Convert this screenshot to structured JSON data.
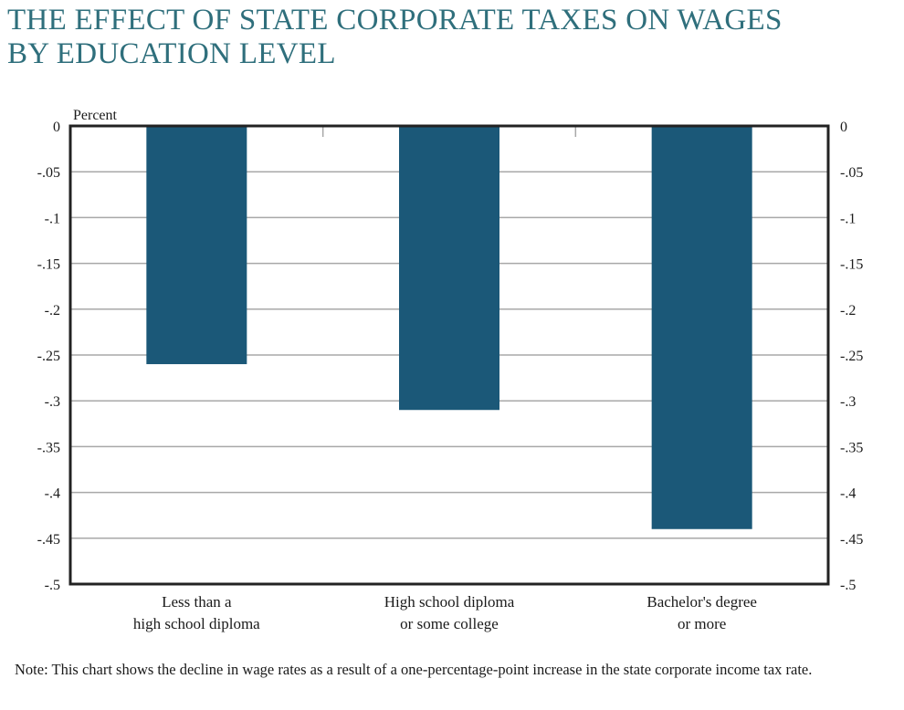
{
  "chart_data": {
    "type": "bar",
    "title": "THE EFFECT OF STATE CORPORATE TAXES ON WAGES\nBY EDUCATION LEVEL",
    "ylabel": "Percent",
    "xlabel": "",
    "categories": [
      [
        "Less than a",
        "high school diploma"
      ],
      [
        "High school diploma",
        "or some college"
      ],
      [
        "Bachelor's degree",
        "or more"
      ]
    ],
    "values": [
      -0.26,
      -0.31,
      -0.44
    ],
    "ylim": [
      -0.5,
      0
    ],
    "y_ticks": [
      "0",
      "-.05",
      "-.1",
      "-.15",
      "-.2",
      "-.25",
      "-.3",
      "-.35",
      "-.4",
      "-.45",
      "-.5"
    ],
    "grid": true,
    "bar_color": "#1b5878",
    "note": "Note: This chart shows the decline in wage rates as a result of a one-percentage-point increase in the state corporate income tax rate."
  },
  "colors": {
    "title": "#2f6f7c",
    "bar": "#1b5878",
    "grid": "#a8a8a8",
    "frame": "#222222"
  }
}
